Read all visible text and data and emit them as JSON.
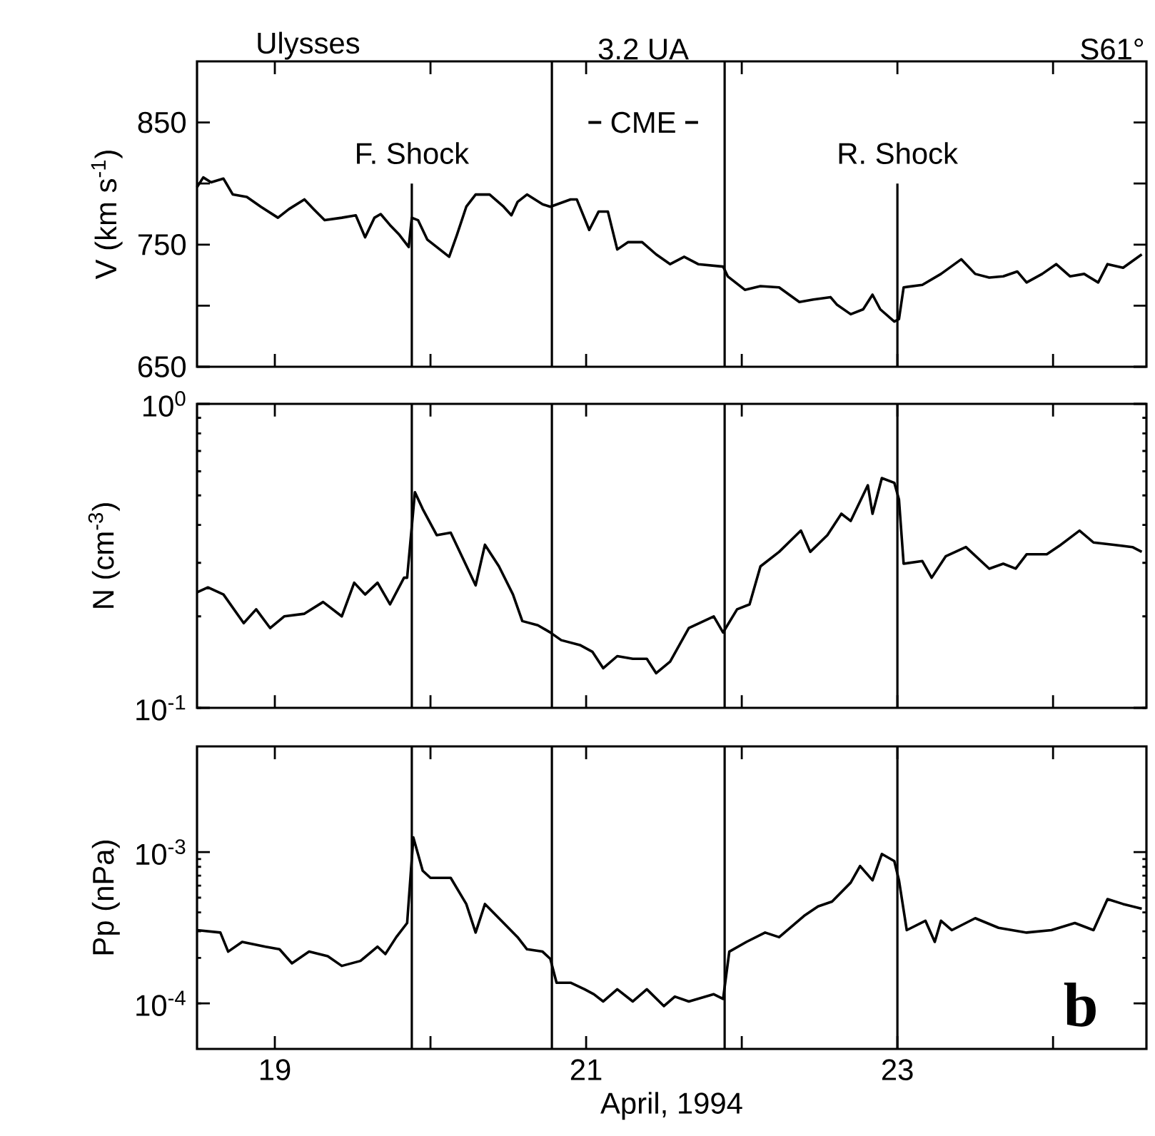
{
  "chart_data": [
    {
      "type": "line",
      "ylabel": "V (km s$^{-1}$)",
      "annotations": [
        "Ulysses",
        "3.2 UA",
        "S61°",
        "CME"
      ],
      "tick_labels": "y",
      "xlim": [
        18.5,
        24.6
      ],
      "ylim": [
        650,
        900
      ],
      "xticks": [
        19,
        {
          "value": 20,
          "label": null
        },
        21,
        {
          "value": 22,
          "label": null
        },
        23,
        {
          "value": 24,
          "label": null
        }
      ],
      "yticks": [
        650,
        {
          "value": 700,
          "label": null
        },
        750,
        {
          "value": 800,
          "label": null
        },
        850
      ],
      "ref_lines": [
        {
          "axis": "x",
          "value": 19.88,
          "label": "F. Shock"
        },
        {
          "axis": "x",
          "value": 20.78
        },
        {
          "axis": "x",
          "value": 21.89
        },
        {
          "axis": "x",
          "value": 23.0,
          "label": "R. Shock"
        }
      ],
      "x": [
        18.5,
        18.54,
        18.59,
        18.67,
        18.73,
        18.82,
        18.91,
        19.02,
        19.09,
        19.19,
        19.25,
        19.32,
        19.43,
        19.52,
        19.58,
        19.64,
        19.68,
        19.74,
        19.8,
        19.86,
        19.88,
        19.92,
        19.98,
        20.04,
        20.12,
        20.17,
        20.23,
        20.29,
        20.38,
        20.47,
        20.52,
        20.56,
        20.62,
        20.72,
        20.77,
        20.9,
        20.94,
        21.02,
        21.08,
        21.14,
        21.2,
        21.27,
        21.36,
        21.45,
        21.54,
        21.63,
        21.72,
        21.88,
        21.91,
        22.02,
        22.12,
        22.24,
        22.37,
        22.46,
        22.57,
        22.61,
        22.7,
        22.78,
        22.84,
        22.89,
        22.98,
        23.01,
        23.04,
        23.16,
        23.28,
        23.41,
        23.5,
        23.59,
        23.68,
        23.77,
        23.83,
        23.93,
        24.02,
        24.11,
        24.2,
        24.29,
        24.35,
        24.45,
        24.57
      ],
      "series": [
        {
          "color": "#000000",
          "values": [
            797,
            805,
            801,
            804,
            791,
            789,
            781,
            772,
            779,
            787,
            779,
            770,
            772,
            774,
            756,
            772,
            775,
            766,
            758,
            748,
            772,
            770,
            754,
            748,
            740,
            758,
            781,
            791,
            791,
            781,
            774,
            785,
            791,
            783,
            781,
            787,
            787,
            762,
            777,
            777,
            746,
            752,
            752,
            742,
            734,
            740,
            734,
            732,
            724,
            713,
            716,
            715,
            703,
            705,
            707,
            701,
            693,
            697,
            709,
            697,
            687,
            689,
            715,
            717,
            726,
            738,
            726,
            723,
            724,
            728,
            719,
            726,
            734,
            724,
            726,
            719,
            734,
            731,
            742
          ]
        }
      ]
    },
    {
      "type": "line",
      "ylabel": "N (cm$^{-3}$)",
      "log": true,
      "tick_labels": "y",
      "xlim": [
        18.5,
        24.6
      ],
      "ylim": [
        0.1,
        1
      ],
      "xticks": [
        19,
        {
          "value": 20,
          "label": null
        },
        21,
        {
          "value": 22,
          "label": null
        },
        23,
        {
          "value": 24,
          "label": null
        }
      ],
      "yticks": [
        {
          "value": 0.1,
          "label": "10$^{-1}$"
        },
        {
          "value": 1,
          "label": "10$^{0}$"
        }
      ],
      "ref_lines": [
        {
          "axis": "x",
          "value": 19.88
        },
        {
          "axis": "x",
          "value": 20.78
        },
        {
          "axis": "x",
          "value": 21.89
        },
        {
          "axis": "x",
          "value": 23.0
        }
      ],
      "x": [
        18.5,
        18.57,
        18.67,
        18.8,
        18.88,
        18.97,
        19.06,
        19.19,
        19.31,
        19.43,
        19.51,
        19.58,
        19.66,
        19.74,
        19.83,
        19.85,
        19.9,
        19.95,
        20.04,
        20.13,
        20.29,
        20.35,
        20.44,
        20.53,
        20.59,
        20.69,
        20.77,
        20.84,
        20.96,
        21.04,
        21.11,
        21.2,
        21.3,
        21.39,
        21.45,
        21.54,
        21.66,
        21.82,
        21.88,
        21.97,
        22.05,
        22.12,
        22.24,
        22.38,
        22.44,
        22.55,
        22.64,
        22.7,
        22.81,
        22.84,
        22.9,
        22.98,
        23.01,
        23.04,
        23.16,
        23.22,
        23.31,
        23.44,
        23.59,
        23.68,
        23.76,
        23.83,
        23.96,
        24.05,
        24.17,
        24.26,
        24.39,
        24.51,
        24.57
      ],
      "series": [
        {
          "color": "#000000",
          "values": [
            0.24,
            0.249,
            0.236,
            0.19,
            0.211,
            0.183,
            0.2,
            0.204,
            0.223,
            0.2,
            0.258,
            0.236,
            0.258,
            0.219,
            0.268,
            0.268,
            0.512,
            0.451,
            0.37,
            0.377,
            0.253,
            0.344,
            0.292,
            0.236,
            0.193,
            0.187,
            0.177,
            0.167,
            0.161,
            0.153,
            0.135,
            0.148,
            0.145,
            0.145,
            0.13,
            0.142,
            0.183,
            0.2,
            0.177,
            0.211,
            0.219,
            0.292,
            0.326,
            0.383,
            0.326,
            0.37,
            0.435,
            0.412,
            0.54,
            0.435,
            0.57,
            0.55,
            0.485,
            0.298,
            0.304,
            0.268,
            0.315,
            0.338,
            0.287,
            0.298,
            0.287,
            0.32,
            0.32,
            0.344,
            0.383,
            0.35,
            0.344,
            0.338,
            0.326
          ]
        }
      ]
    },
    {
      "type": "line",
      "ylabel": "Pp  (nPa)",
      "xlabel": "April, 1994",
      "annotations": [
        "b"
      ],
      "log": true,
      "xlim": [
        18.5,
        24.6
      ],
      "ylim": [
        5e-05,
        0.005
      ],
      "xticks": [
        19,
        {
          "value": 20,
          "label": null
        },
        21,
        {
          "value": 22,
          "label": null
        },
        23,
        {
          "value": 24,
          "label": null
        }
      ],
      "yticks": [
        {
          "value": 0.0001,
          "label": "10$^{-4}$"
        },
        {
          "value": 0.001,
          "label": "10$^{-3}$"
        }
      ],
      "ref_lines": [
        {
          "axis": "x",
          "value": 19.88
        },
        {
          "axis": "x",
          "value": 20.78
        },
        {
          "axis": "x",
          "value": 21.89
        },
        {
          "axis": "x",
          "value": 23.0
        }
      ],
      "x": [
        18.5,
        18.65,
        18.7,
        18.79,
        18.94,
        19.03,
        19.11,
        19.22,
        19.34,
        19.43,
        19.55,
        19.66,
        19.71,
        19.78,
        19.85,
        19.89,
        19.95,
        20.0,
        20.13,
        20.23,
        20.29,
        20.35,
        20.47,
        20.56,
        20.62,
        20.72,
        20.77,
        20.81,
        20.9,
        20.99,
        21.05,
        21.11,
        21.2,
        21.3,
        21.39,
        21.5,
        21.57,
        21.66,
        21.82,
        21.88,
        21.92,
        22.03,
        22.15,
        22.24,
        22.4,
        22.49,
        22.58,
        22.7,
        22.76,
        22.84,
        22.9,
        22.98,
        23.01,
        23.06,
        23.18,
        23.24,
        23.28,
        23.35,
        23.5,
        23.65,
        23.83,
        23.99,
        24.14,
        24.26,
        24.35,
        24.45,
        24.57
      ],
      "series": [
        {
          "color": "#000000",
          "values": [
            0.000305,
            0.000294,
            0.00022,
            0.000255,
            0.000237,
            0.000228,
            0.000184,
            0.00022,
            0.000205,
            0.000177,
            0.000191,
            0.000237,
            0.000212,
            0.000274,
            0.00034,
            0.00125,
            0.000754,
            0.000676,
            0.000676,
            0.000454,
            0.000294,
            0.000454,
            0.00034,
            0.000274,
            0.000228,
            0.00022,
            0.000197,
            0.000137,
            0.000137,
            0.000124,
            0.000115,
            0.000103,
            0.000124,
            0.000103,
            0.000124,
            9.6e-05,
            0.000111,
            0.000103,
            0.000115,
            0.000107,
            0.00022,
            0.000255,
            0.000294,
            0.000274,
            0.000379,
            0.000438,
            0.000471,
            0.000629,
            0.00081,
            0.000652,
            0.000972,
            0.000872,
            0.000652,
            0.000305,
            0.000352,
            0.000255,
            0.000352,
            0.000305,
            0.000366,
            0.000316,
            0.000294,
            0.000305,
            0.00034,
            0.000305,
            0.000489,
            0.000454,
            0.000423
          ]
        }
      ]
    }
  ]
}
